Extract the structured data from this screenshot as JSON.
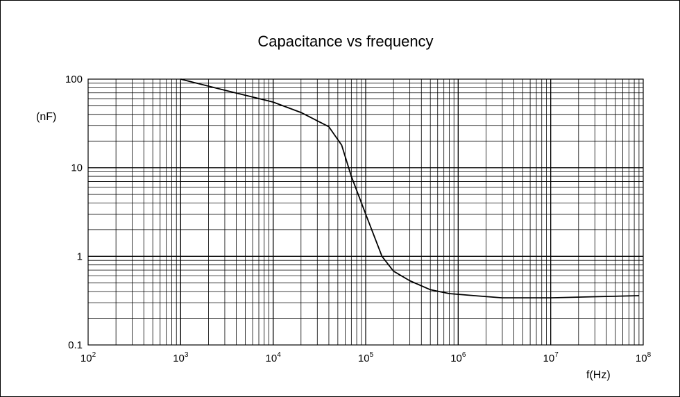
{
  "chart_data": {
    "type": "line",
    "title": "Capacitance vs frequency",
    "xlabel": "f(Hz)",
    "ylabel": "(nF)",
    "xscale": "log",
    "yscale": "log",
    "xlim": [
      100,
      100000000
    ],
    "ylim": [
      0.1,
      100
    ],
    "grid": true,
    "x_ticks": [
      {
        "base": "10",
        "exp": "2"
      },
      {
        "base": "10",
        "exp": "3"
      },
      {
        "base": "10",
        "exp": "4"
      },
      {
        "base": "10",
        "exp": "5"
      },
      {
        "base": "10",
        "exp": "6"
      },
      {
        "base": "10",
        "exp": "7"
      },
      {
        "base": "10",
        "exp": "8"
      }
    ],
    "y_ticks": [
      "0.1",
      "1",
      "10",
      "100"
    ],
    "series": [
      {
        "color": "#000000",
        "x": [
          1000,
          3000,
          10000,
          20000,
          40000,
          55000,
          70000,
          100000,
          150000,
          200000,
          300000,
          500000,
          800000,
          1500000,
          3000000,
          10000000,
          30000000,
          90000000
        ],
        "y": [
          100,
          75,
          55,
          42,
          29,
          18,
          8,
          3,
          1.0,
          0.68,
          0.53,
          0.42,
          0.38,
          0.36,
          0.34,
          0.34,
          0.35,
          0.36
        ]
      }
    ]
  }
}
